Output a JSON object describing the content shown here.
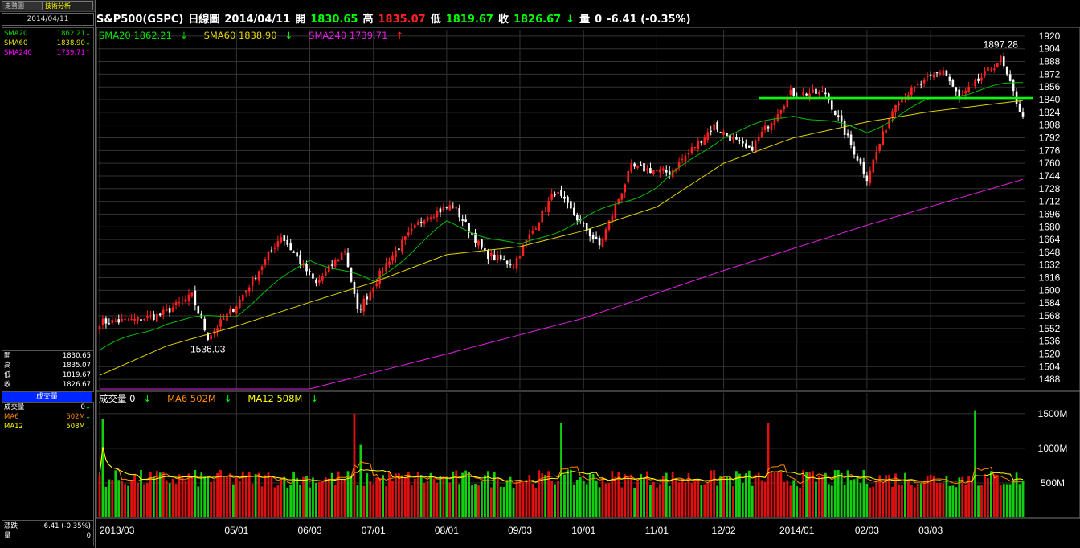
{
  "tabs": {
    "trend": "走勢圖",
    "tech": "技術分析"
  },
  "sidebar": {
    "date": "2014/04/11",
    "sma": [
      {
        "label": "SMA20",
        "value": "1862.21",
        "arrow": "↓",
        "color": "#00e000"
      },
      {
        "label": "SMA60",
        "value": "1838.90",
        "arrow": "↓",
        "color": "#e0e000"
      },
      {
        "label": "SMA240",
        "value": "1739.71",
        "arrow": "↑",
        "color": "#ff00ff"
      }
    ],
    "ohlc": [
      {
        "label": "開",
        "value": "1830.65"
      },
      {
        "label": "高",
        "value": "1835.07"
      },
      {
        "label": "低",
        "value": "1819.67"
      },
      {
        "label": "收",
        "value": "1826.67"
      }
    ],
    "vol_header": "成交量",
    "vol": [
      {
        "label": "成交量",
        "value": "0",
        "arrow": "↓",
        "color": "#ffffff"
      },
      {
        "label": "MA6",
        "value": "502M",
        "arrow": "↓",
        "color": "#ff8800"
      },
      {
        "label": "MA12",
        "value": "508M",
        "arrow": "↓",
        "color": "#ffff00"
      }
    ],
    "change": [
      {
        "label": "漲跌",
        "value": "-6.41 (-0.35%)"
      },
      {
        "label": "量",
        "value": "0"
      }
    ]
  },
  "header": {
    "symbol": "S&P500(GSPC)",
    "chart_type": "日線圖",
    "date": "2014/04/11",
    "open_label": "開",
    "open": "1830.65",
    "high_label": "高",
    "high": "1835.07",
    "low_label": "低",
    "low": "1819.67",
    "close_label": "收",
    "close": "1826.67",
    "close_arrow": "↓",
    "vol_label": "量",
    "vol": "0",
    "change": "-6.41 (-0.35%)"
  },
  "legend": {
    "sma20": "SMA20 1862.21",
    "sma20_arrow": "↓",
    "sma60": "SMA60 1838.90",
    "sma60_arrow": "↓",
    "sma240": "SMA240 1739.71",
    "sma240_arrow": "↑"
  },
  "vol_legend": {
    "vol": "成交量 0",
    "vol_arrow": "↓",
    "ma6": "MA6 502M",
    "ma6_arrow": "↓",
    "ma12": "MA12 508M",
    "ma12_arrow": "↓"
  },
  "colors": {
    "up": "#ff2020",
    "down": "#ffffff",
    "vol_up": "#e01010",
    "vol_down": "#10d010",
    "sma20": "#00c000",
    "sma60": "#e0d000",
    "sma240": "#e020e0",
    "support": "#00ff00",
    "grid": "#333333"
  },
  "chart_data": [
    {
      "type": "candlestick",
      "title": "S&P500(GSPC) 日線圖",
      "xlabel": "",
      "ylabel": "",
      "x_range": [
        "2013/03/01",
        "2014/04/11"
      ],
      "ylim": [
        1476,
        1928
      ],
      "y_ticks": [
        1488,
        1504,
        1520,
        1536,
        1552,
        1568,
        1584,
        1600,
        1616,
        1632,
        1648,
        1664,
        1680,
        1696,
        1712,
        1728,
        1744,
        1760,
        1776,
        1792,
        1808,
        1824,
        1840,
        1856,
        1872,
        1888,
        1904,
        1920
      ],
      "x_ticks": [
        "2013/03",
        "05/01",
        "06/03",
        "07/01",
        "08/01",
        "09/03",
        "10/01",
        "11/01",
        "12/02",
        "2014/01",
        "02/03",
        "03/03"
      ],
      "annotations": [
        {
          "text": "1897.28",
          "date": "2014/04/02",
          "value": 1897.28
        },
        {
          "text": "1536.03",
          "date": "2013/04/18",
          "value": 1536.03
        }
      ],
      "support_line": {
        "value": 1842,
        "from": "2013/12/17",
        "to": "2014/04/11"
      },
      "close_waypoints": [
        {
          "x": "2013/03/01",
          "y": 1560
        },
        {
          "x": "2013/03/15",
          "y": 1562
        },
        {
          "x": "2013/03/28",
          "y": 1569
        },
        {
          "x": "2013/04/11",
          "y": 1593
        },
        {
          "x": "2013/04/18",
          "y": 1541
        },
        {
          "x": "2013/05/01",
          "y": 1582
        },
        {
          "x": "2013/05/21",
          "y": 1669
        },
        {
          "x": "2013/06/05",
          "y": 1608
        },
        {
          "x": "2013/06/18",
          "y": 1651
        },
        {
          "x": "2013/06/24",
          "y": 1573
        },
        {
          "x": "2013/07/08",
          "y": 1640
        },
        {
          "x": "2013/07/23",
          "y": 1693
        },
        {
          "x": "2013/08/05",
          "y": 1707
        },
        {
          "x": "2013/08/19",
          "y": 1646
        },
        {
          "x": "2013/08/30",
          "y": 1633
        },
        {
          "x": "2013/09/18",
          "y": 1725
        },
        {
          "x": "2013/10/08",
          "y": 1656
        },
        {
          "x": "2013/10/22",
          "y": 1755
        },
        {
          "x": "2013/11/07",
          "y": 1748
        },
        {
          "x": "2013/11/27",
          "y": 1807
        },
        {
          "x": "2013/12/12",
          "y": 1775
        },
        {
          "x": "2013/12/31",
          "y": 1848
        },
        {
          "x": "2014/01/15",
          "y": 1848
        },
        {
          "x": "2014/02/03",
          "y": 1742
        },
        {
          "x": "2014/02/14",
          "y": 1838
        },
        {
          "x": "2014/03/07",
          "y": 1878
        },
        {
          "x": "2014/03/14",
          "y": 1841
        },
        {
          "x": "2014/04/02",
          "y": 1891
        },
        {
          "x": "2014/04/11",
          "y": 1816
        }
      ],
      "sma20_waypoints": [
        {
          "x": "2013/03/01",
          "y": 1525
        },
        {
          "x": "2013/04/01",
          "y": 1560
        },
        {
          "x": "2013/05/01",
          "y": 1570
        },
        {
          "x": "2013/06/01",
          "y": 1640
        },
        {
          "x": "2013/07/01",
          "y": 1610
        },
        {
          "x": "2013/08/01",
          "y": 1685
        },
        {
          "x": "2013/09/03",
          "y": 1655
        },
        {
          "x": "2013/10/01",
          "y": 1690
        },
        {
          "x": "2013/11/01",
          "y": 1730
        },
        {
          "x": "2013/12/02",
          "y": 1795
        },
        {
          "x": "2014/01/01",
          "y": 1822
        },
        {
          "x": "2014/02/03",
          "y": 1800
        },
        {
          "x": "2014/03/03",
          "y": 1840
        },
        {
          "x": "2014/04/11",
          "y": 1862.21
        }
      ],
      "sma60_waypoints": [
        {
          "x": "2013/03/01",
          "y": 1493
        },
        {
          "x": "2013/04/01",
          "y": 1530
        },
        {
          "x": "2013/05/01",
          "y": 1555
        },
        {
          "x": "2013/06/01",
          "y": 1585
        },
        {
          "x": "2013/07/01",
          "y": 1610
        },
        {
          "x": "2013/08/01",
          "y": 1645
        },
        {
          "x": "2013/09/03",
          "y": 1655
        },
        {
          "x": "2013/10/01",
          "y": 1675
        },
        {
          "x": "2013/11/01",
          "y": 1705
        },
        {
          "x": "2013/12/02",
          "y": 1760
        },
        {
          "x": "2014/01/01",
          "y": 1792
        },
        {
          "x": "2014/02/03",
          "y": 1812
        },
        {
          "x": "2014/03/03",
          "y": 1825
        },
        {
          "x": "2014/04/11",
          "y": 1838.9
        }
      ],
      "sma240_waypoints": [
        {
          "x": "2013/06/01",
          "y": 1476
        },
        {
          "x": "2013/08/01",
          "y": 1520
        },
        {
          "x": "2013/10/01",
          "y": 1565
        },
        {
          "x": "2013/12/02",
          "y": 1625
        },
        {
          "x": "2014/02/03",
          "y": 1682
        },
        {
          "x": "2014/04/11",
          "y": 1739.71
        }
      ]
    },
    {
      "type": "bar",
      "title": "成交量",
      "ylim": [
        0,
        1800
      ],
      "y_ticks": [
        {
          "value": 500,
          "label": "500M"
        },
        {
          "value": 1000,
          "label": "1000M"
        },
        {
          "value": 1500,
          "label": "1500M"
        }
      ],
      "unit": "M",
      "typical_volume": 560,
      "ma6_last": 502,
      "ma12_last": 508,
      "spikes": [
        {
          "x": "2013/03/04",
          "value": 1420,
          "dir": "down"
        },
        {
          "x": "2013/06/21",
          "value": 1500,
          "dir": "up"
        },
        {
          "x": "2013/06/25",
          "value": 1050,
          "dir": "down"
        },
        {
          "x": "2013/09/20",
          "value": 1370,
          "dir": "down"
        },
        {
          "x": "2013/12/20",
          "value": 1370,
          "dir": "up"
        },
        {
          "x": "2014/03/21",
          "value": 1550,
          "dir": "down"
        }
      ]
    }
  ]
}
